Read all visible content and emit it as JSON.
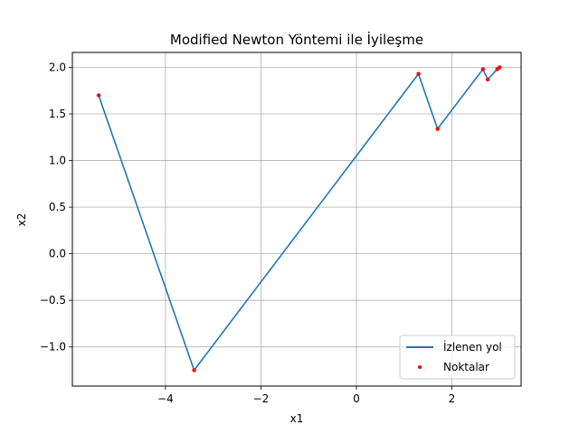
{
  "chart_data": {
    "type": "line",
    "title": "Modified Newton Yöntemi ile İyileşme",
    "xlabel": "x1",
    "ylabel": "x2",
    "xlim": [
      -5.95,
      3.45
    ],
    "ylim": [
      -1.42,
      2.16
    ],
    "xticks": [
      -4,
      -2,
      0,
      2
    ],
    "yticks": [
      -1.0,
      -0.5,
      0.0,
      0.5,
      1.0,
      1.5,
      2.0
    ],
    "xtick_labels": [
      "−4",
      "−2",
      "0",
      "2"
    ],
    "ytick_labels": [
      "−1.0",
      "−0.5",
      "0.0",
      "0.5",
      "1.0",
      "1.5",
      "2.0"
    ],
    "grid": true,
    "legend_position": "lower-right",
    "series": [
      {
        "name": "İzlenen yol",
        "kind": "line",
        "color": "#1f77b4",
        "points": [
          [
            -5.4,
            1.7
          ],
          [
            -3.4,
            -1.25
          ],
          [
            1.3,
            1.93
          ],
          [
            1.7,
            1.34
          ],
          [
            2.65,
            1.98
          ],
          [
            2.75,
            1.87
          ],
          [
            2.95,
            1.98
          ],
          [
            3.0,
            2.0
          ]
        ]
      },
      {
        "name": "Noktalar",
        "kind": "scatter",
        "color": "#ff0000",
        "points": [
          [
            -5.4,
            1.7
          ],
          [
            -3.4,
            -1.25
          ],
          [
            1.3,
            1.93
          ],
          [
            1.7,
            1.34
          ],
          [
            2.65,
            1.98
          ],
          [
            2.75,
            1.87
          ],
          [
            2.95,
            1.98
          ],
          [
            3.0,
            2.0
          ]
        ]
      }
    ]
  }
}
